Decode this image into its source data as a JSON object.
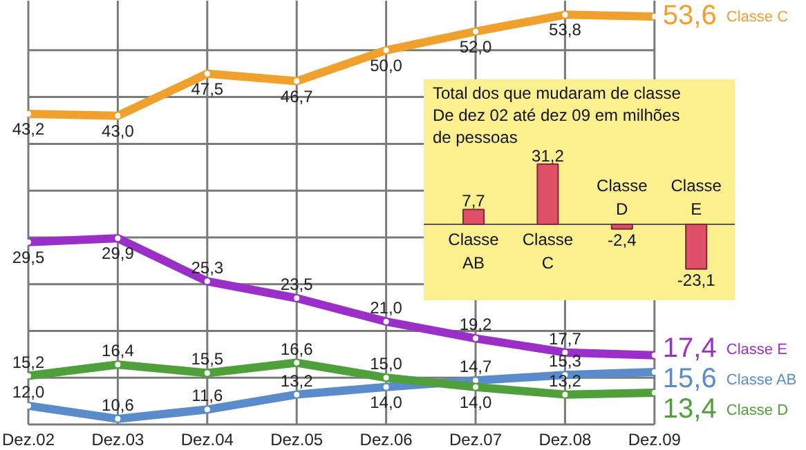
{
  "chart_data": [
    {
      "type": "line",
      "categories": [
        "Dez.02",
        "Dez.03",
        "Dez.04",
        "Dez.05",
        "Dez.06",
        "Dez.07",
        "Dez.08",
        "Dez.09"
      ],
      "series": [
        {
          "name": "Classe C",
          "color": "#f0a02c",
          "values": [
            43.2,
            43.0,
            47.5,
            46.7,
            50.0,
            52.0,
            53.8,
            53.6
          ],
          "value_labels": [
            "43,2",
            "43,0",
            "47,5",
            "46,7",
            "50,0",
            "52,0",
            "53,8",
            "53,6"
          ]
        },
        {
          "name": "Classe E",
          "color": "#9b30c8",
          "values": [
            29.5,
            29.9,
            25.3,
            23.5,
            21.0,
            19.2,
            17.7,
            17.4
          ],
          "value_labels": [
            "29,5",
            "29,9",
            "25,3",
            "23,5",
            "21,0",
            "19,2",
            "17,7",
            "17,4"
          ]
        },
        {
          "name": "Classe AB",
          "color": "#5a8ccc",
          "values": [
            12.0,
            10.6,
            11.6,
            13.2,
            14.0,
            14.7,
            15.3,
            15.6
          ],
          "value_labels": [
            "12,0",
            "10,6",
            "11,6",
            "13,2",
            "14,0",
            "14,7",
            "15,3",
            "15,6"
          ]
        },
        {
          "name": "Classe D",
          "color": "#4fa03a",
          "values": [
            15.2,
            16.4,
            15.5,
            16.6,
            15.0,
            14.0,
            13.2,
            13.4
          ],
          "value_labels": [
            "15,2",
            "16,4",
            "15,5",
            "16,6",
            "15,0",
            "14,0",
            "13,2",
            "13,4"
          ]
        }
      ],
      "ylim": [
        10,
        55.3
      ],
      "yticks": [
        {
          "value": 15,
          "label": null
        },
        {
          "value": 20,
          "label": null
        },
        {
          "value": 25,
          "label": null
        },
        {
          "value": 30,
          "label": null
        },
        {
          "value": 35,
          "label": null
        },
        {
          "value": 40,
          "label": null
        },
        {
          "value": 45,
          "label": null
        },
        {
          "value": 50,
          "label": null
        }
      ],
      "tick_labels": "x",
      "grid": true,
      "marker": "circle",
      "line_style": "solid"
    },
    {
      "type": "bar",
      "title": "Total dos que mudaram de classe De dez 02 até dez 09 em milhões de pessoas",
      "categories": [
        "Classe AB",
        "Classe C",
        "Classe D",
        "Classe E"
      ],
      "values": [
        7.7,
        31.2,
        -2.4,
        -23.1
      ],
      "color": "#e04f68",
      "value_labels": [
        "7,7",
        "31,2",
        "-2,4",
        "-23,1"
      ]
    }
  ]
}
